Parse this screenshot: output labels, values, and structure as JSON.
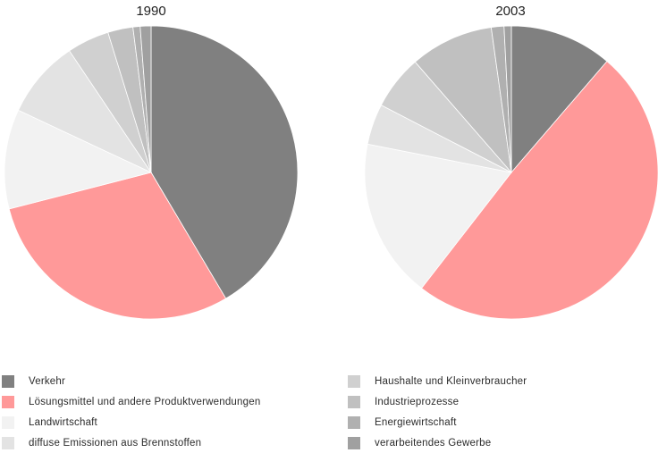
{
  "chart_data": [
    {
      "type": "pie",
      "title": "1990",
      "slices": [
        {
          "label": "Verkehr",
          "value": 41.9,
          "color": "#808080"
        },
        {
          "label": "Lösungsmittel und andere Produktverwendungen",
          "value": 29.8,
          "color": "#ff9999"
        },
        {
          "label": "Landwirtschaft",
          "value": 11.1,
          "color": "#f2f2f2"
        },
        {
          "label": "diffuse Emissionen aus Brennstoffen",
          "value": 8.7,
          "color": "#e3e3e3"
        },
        {
          "label": "Haushalte und Kleinverbraucher",
          "value": 4.7,
          "color": "#d0d0d0"
        },
        {
          "label": "Industrieprozesse",
          "value": 2.8,
          "color": "#c0c0c0"
        },
        {
          "label": "Energiewirtschaft",
          "value": 0.8,
          "color": "#b0b0b0"
        },
        {
          "label": "verarbeitendes Gewerbe",
          "value": 1.2,
          "color": "#a0a0a0"
        }
      ]
    },
    {
      "type": "pie",
      "title": "2003",
      "slices": [
        {
          "label": "Verkehr",
          "value": 11.3,
          "color": "#808080"
        },
        {
          "label": "Lösungsmittel und andere Produktverwendungen",
          "value": 49.2,
          "color": "#ff9999"
        },
        {
          "label": "Landwirtschaft",
          "value": 17.6,
          "color": "#f2f2f2"
        },
        {
          "label": "diffuse Emissionen aus Brennstoffen",
          "value": 4.5,
          "color": "#e3e3e3"
        },
        {
          "label": "Haushalte und Kleinverbraucher",
          "value": 6.0,
          "color": "#d0d0d0"
        },
        {
          "label": "Industrieprozesse",
          "value": 9.2,
          "color": "#c0c0c0"
        },
        {
          "label": "Energiewirtschaft",
          "value": 1.4,
          "color": "#b0b0b0"
        },
        {
          "label": "verarbeitendes Gewerbe",
          "value": 0.8,
          "color": "#a0a0a0"
        }
      ]
    }
  ],
  "legend": {
    "left": [
      {
        "label": "Verkehr",
        "color": "#808080"
      },
      {
        "label": "Lösungsmittel und andere Produktverwendungen",
        "color": "#ff9999"
      },
      {
        "label": "Landwirtschaft",
        "color": "#f2f2f2"
      },
      {
        "label": "diffuse Emissionen aus Brennstoffen",
        "color": "#e3e3e3"
      }
    ],
    "right": [
      {
        "label": "Haushalte und Kleinverbraucher",
        "color": "#d0d0d0"
      },
      {
        "label": "Industrieprozesse",
        "color": "#c0c0c0"
      },
      {
        "label": "Energiewirtschaft",
        "color": "#b0b0b0"
      },
      {
        "label": "verarbeitendes Gewerbe",
        "color": "#a0a0a0"
      }
    ]
  }
}
